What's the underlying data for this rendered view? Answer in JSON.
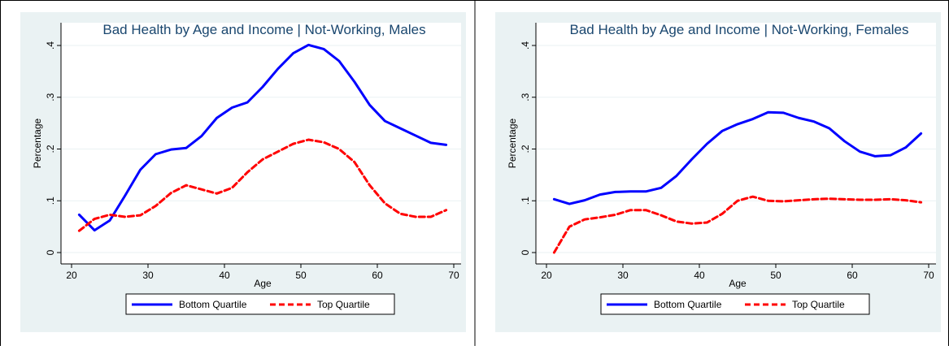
{
  "chart_data": [
    {
      "type": "line",
      "title": "Bad Health by Age and Income | Not-Working, Males",
      "x_label": "Age",
      "y_label": "Percentage",
      "x": [
        21,
        23,
        25,
        27,
        29,
        31,
        33,
        35,
        37,
        39,
        41,
        43,
        45,
        47,
        49,
        51,
        53,
        55,
        57,
        59,
        61,
        63,
        65,
        67,
        69
      ],
      "series": [
        {
          "name": "Bottom Quartile",
          "color": "#0000ff",
          "line_style": "solid",
          "values": [
            0.073,
            0.043,
            0.062,
            0.11,
            0.16,
            0.19,
            0.199,
            0.202,
            0.225,
            0.26,
            0.28,
            0.29,
            0.32,
            0.355,
            0.385,
            0.401,
            0.393,
            0.37,
            0.33,
            0.285,
            0.254,
            0.24,
            0.226,
            0.212,
            0.208
          ]
        },
        {
          "name": "Top Quartile",
          "color": "#ff0000",
          "line_style": "dashed",
          "values": [
            0.042,
            0.065,
            0.073,
            0.069,
            0.072,
            0.09,
            0.115,
            0.13,
            0.122,
            0.114,
            0.125,
            0.155,
            0.18,
            0.195,
            0.21,
            0.218,
            0.213,
            0.2,
            0.175,
            0.13,
            0.095,
            0.075,
            0.069,
            0.069,
            0.082
          ]
        }
      ],
      "xlim": [
        20,
        70
      ],
      "xticks": [
        20,
        30,
        40,
        50,
        60,
        70
      ],
      "ylim": [
        0,
        0.4
      ],
      "yticks": [
        0,
        {
          "value": 0.1,
          "label": ".1"
        },
        {
          "value": 0.2,
          "label": ".2"
        },
        {
          "value": 0.3,
          "label": ".3"
        },
        {
          "value": 0.4,
          "label": ".4"
        }
      ],
      "grid": true,
      "legend": "bottom"
    },
    {
      "type": "line",
      "title": "Bad Health by Age and Income | Not-Working, Females",
      "x_label": "Age",
      "y_label": "Percentage",
      "x": [
        21,
        23,
        25,
        27,
        29,
        31,
        33,
        35,
        37,
        39,
        41,
        43,
        45,
        47,
        49,
        51,
        53,
        55,
        57,
        59,
        61,
        63,
        65,
        67,
        69
      ],
      "series": [
        {
          "name": "Bottom Quartile",
          "color": "#0000ff",
          "line_style": "solid",
          "values": [
            0.103,
            0.094,
            0.101,
            0.112,
            0.117,
            0.118,
            0.118,
            0.125,
            0.148,
            0.18,
            0.21,
            0.235,
            0.248,
            0.258,
            0.271,
            0.27,
            0.26,
            0.253,
            0.24,
            0.215,
            0.195,
            0.186,
            0.188,
            0.203,
            0.23
          ]
        },
        {
          "name": "Top Quartile",
          "color": "#ff0000",
          "line_style": "dashed",
          "values": [
            0,
            0.05,
            0.064,
            0.068,
            0.073,
            0.082,
            0.082,
            0.072,
            0.06,
            0.056,
            0.058,
            0.075,
            0.1,
            0.108,
            0.1,
            0.099,
            0.101,
            0.103,
            0.104,
            0.103,
            0.102,
            0.102,
            0.103,
            0.101,
            0.097
          ]
        }
      ],
      "xlim": [
        20,
        70
      ],
      "xticks": [
        20,
        30,
        40,
        50,
        60,
        70
      ],
      "ylim": [
        0,
        0.4
      ],
      "yticks": [
        0,
        {
          "value": 0.1,
          "label": ".1"
        },
        {
          "value": 0.2,
          "label": ".2"
        },
        {
          "value": 0.3,
          "label": ".3"
        },
        {
          "value": 0.4,
          "label": ".4"
        }
      ],
      "grid": true,
      "legend": "bottom"
    }
  ]
}
